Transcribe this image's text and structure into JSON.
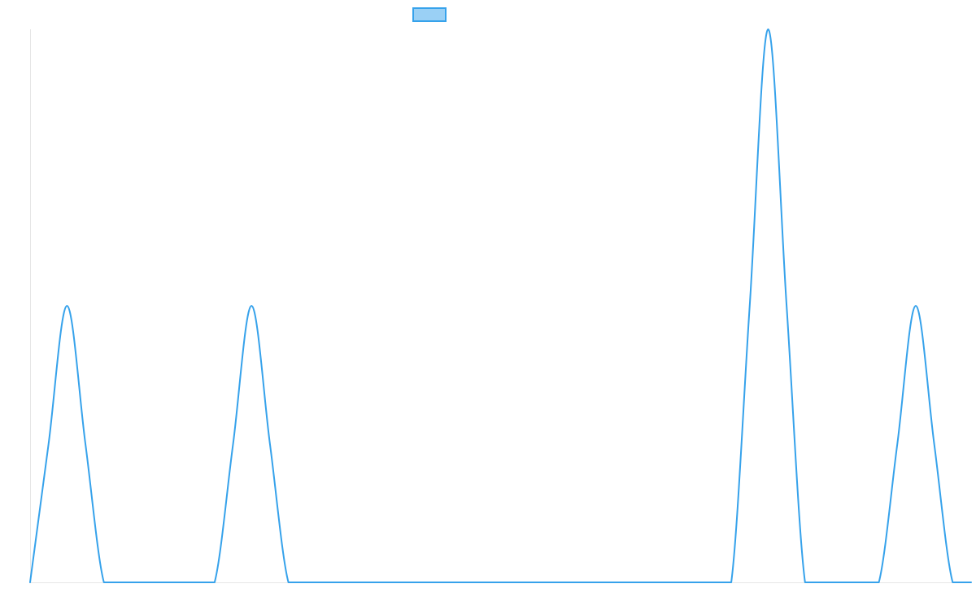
{
  "chart_data": {
    "type": "line",
    "title": "",
    "xlabel": "",
    "ylabel": "",
    "legend": {
      "placement": "top-center",
      "label": ""
    },
    "grid": false,
    "colors": {
      "line": "#36a2eb",
      "fill": "#9ad0f5",
      "axis": "#e6e6e6"
    },
    "x": [
      0,
      1,
      2,
      3,
      4,
      5,
      6,
      7,
      8,
      9,
      10,
      11,
      12,
      13,
      14,
      15,
      16,
      17,
      18,
      19,
      20,
      21,
      22,
      23,
      24,
      25,
      26,
      27,
      28,
      29,
      30,
      31,
      32,
      33,
      34,
      35,
      36,
      37,
      38,
      39,
      40,
      41,
      42,
      43,
      44,
      45,
      46,
      47,
      48,
      49,
      50,
      51
    ],
    "series": [
      {
        "name": "",
        "values": [
          0,
          0.5,
          1,
          0.5,
          0,
          0,
          0,
          0,
          0,
          0,
          0,
          0.5,
          1,
          0.5,
          0,
          0,
          0,
          0,
          0,
          0,
          0,
          0,
          0,
          0,
          0,
          0,
          0,
          0,
          0,
          0,
          0,
          0,
          0,
          0,
          0,
          0,
          0,
          0,
          0,
          1,
          2,
          1,
          0,
          0,
          0,
          0,
          0,
          0.5,
          1,
          0.5,
          0,
          0
        ]
      }
    ],
    "ylim": [
      0,
      2
    ],
    "xlim": [
      0,
      51
    ]
  }
}
